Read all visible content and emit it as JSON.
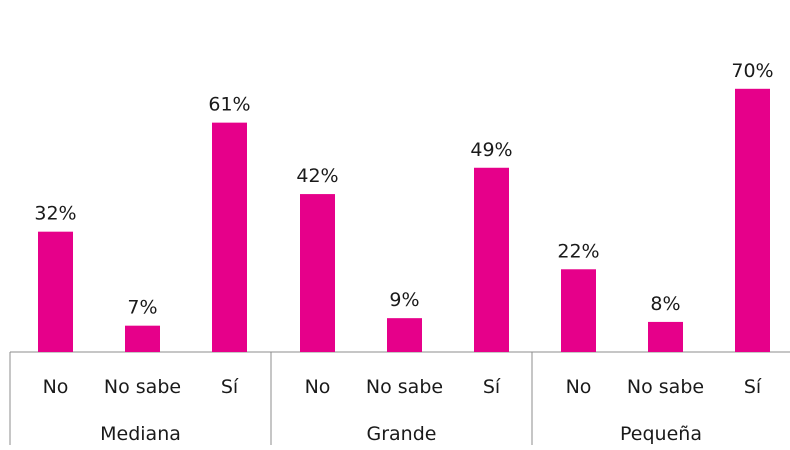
{
  "chart_data": {
    "type": "bar",
    "groups": [
      {
        "name": "Mediana",
        "categories": [
          "No",
          "No sabe",
          "Sí"
        ],
        "values": [
          32,
          7,
          61
        ],
        "labels": [
          "32%",
          "7%",
          "61%"
        ]
      },
      {
        "name": "Grande",
        "categories": [
          "No",
          "No sabe",
          "Sí"
        ],
        "values": [
          42,
          9,
          49
        ],
        "labels": [
          "42%",
          "9%",
          "49%"
        ]
      },
      {
        "name": "Pequeña",
        "categories": [
          "No",
          "No sabe",
          "Sí"
        ],
        "values": [
          22,
          8,
          70
        ],
        "labels": [
          "22%",
          "8%",
          "70%"
        ]
      }
    ],
    "unit": "%",
    "ylim": [
      0,
      70
    ],
    "bar_color": "#E6008A",
    "grid": false,
    "legend": "none"
  }
}
